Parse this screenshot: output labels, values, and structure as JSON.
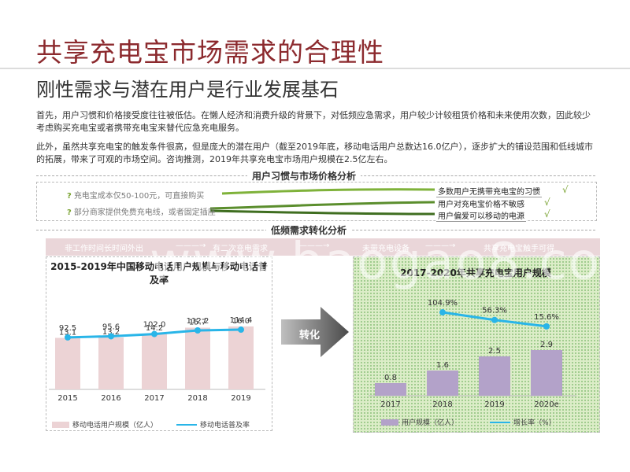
{
  "header": {
    "title": "共享充电宝市场需求的合理性",
    "subtitle": "刚性需求与潜在用户是行业发展基石"
  },
  "body": {
    "paragraph1": "首先，用户习惯和价格接受度往往被低估。在懒人经济和消费升级的背景下，对低频应急需求，用户较少计较租赁价格和未来使用次数，因此较少考虑购买充电宝或者携带充电宝来替代应急充电服务。",
    "paragraph2": "此外，虽然共享充电宝的触发条件很高，但是庞大的潜在用户（截至2019年底，移动电话用户总数达16.0亿户），逐步扩大的铺设范围和低线城市的拓展，带来了可观的市场空间。咨询推测，2019年共享充电宝市场用户规模在2.5亿左右。"
  },
  "section1": {
    "label": "用户习惯与市场价格分析",
    "hints": [
      "充电宝成本仅50-100元，可直接购买",
      "部分商家提供免费充电线，或者固定插座"
    ],
    "targets": [
      "多数用户无携带充电宝的习惯",
      "用户对充电宝价格不敏感",
      "用户偏爱可以移动的电源"
    ],
    "check": "√",
    "q": "?"
  },
  "section2": {
    "label": "低频需求转化分析",
    "flow": [
      "非工作时间长时间外出",
      "有二次充电需求",
      "未带充电设备",
      "共享充电宝触手可得"
    ],
    "flow_arrow": "———→",
    "convert_label": "转化"
  },
  "watermark": "www.baogao8.com",
  "chart_data": [
    {
      "type": "bar",
      "title": "2015-2019年中国移动电话用户规模与移动电话普及率",
      "categories": [
        "2015",
        "2016",
        "2017",
        "2018",
        "2019"
      ],
      "series": [
        {
          "name": "移动电话用户规模（亿人）",
          "type": "bar",
          "values": [
            13.1,
            13.2,
            14.2,
            15.7,
            16.0
          ],
          "color": "#ecd3d5"
        },
        {
          "name": "移动电话普及率",
          "type": "line",
          "values": [
            92.5,
            95.6,
            102.0,
            112.2,
            114.4
          ],
          "color": "#29b5e8"
        }
      ]
    },
    {
      "type": "bar",
      "title": "2017-2020年共享充电宝用户规模",
      "categories": [
        "2017",
        "2018",
        "2019",
        "2020e"
      ],
      "series": [
        {
          "name": "用户规模（亿人）",
          "type": "bar",
          "values": [
            0.8,
            1.6,
            2.5,
            2.9
          ],
          "color": "#b3a2c9"
        },
        {
          "name": "增长率（%）",
          "type": "line",
          "values": [
            null,
            104.9,
            56.3,
            15.6
          ],
          "labels": [
            "",
            "104.9%",
            "56.3%",
            "15.6%"
          ],
          "color": "#29b5e8"
        }
      ]
    }
  ]
}
